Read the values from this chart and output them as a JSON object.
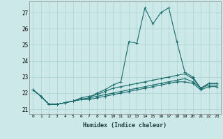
{
  "xlabel": "Humidex (Indice chaleur)",
  "xlim": [
    -0.5,
    23.5
  ],
  "ylim": [
    20.7,
    27.7
  ],
  "yticks": [
    21,
    22,
    23,
    24,
    25,
    26,
    27
  ],
  "xticks": [
    0,
    1,
    2,
    3,
    4,
    5,
    6,
    7,
    8,
    9,
    10,
    11,
    12,
    13,
    14,
    15,
    16,
    17,
    18,
    19,
    20,
    21,
    22,
    23
  ],
  "bg_color": "#cce8e8",
  "grid_color": "#aad0d0",
  "line_color": "#1a6b6b",
  "lines": [
    [
      22.2,
      21.8,
      21.3,
      21.3,
      21.4,
      21.5,
      21.6,
      21.7,
      22.0,
      22.2,
      22.5,
      22.7,
      25.2,
      25.1,
      27.3,
      26.3,
      27.0,
      27.3,
      25.2,
      23.3,
      23.0,
      22.3,
      22.6,
      22.6
    ],
    [
      22.2,
      21.8,
      21.3,
      21.3,
      21.4,
      21.5,
      21.7,
      21.8,
      21.9,
      22.1,
      22.3,
      22.4,
      22.5,
      22.6,
      22.7,
      22.8,
      22.9,
      23.0,
      23.1,
      23.2,
      22.9,
      22.3,
      22.6,
      22.6
    ],
    [
      22.2,
      21.8,
      21.3,
      21.3,
      21.4,
      21.5,
      21.6,
      21.7,
      21.8,
      21.9,
      22.0,
      22.1,
      22.2,
      22.3,
      22.4,
      22.5,
      22.6,
      22.7,
      22.8,
      22.9,
      22.7,
      22.3,
      22.5,
      22.5
    ],
    [
      22.2,
      21.8,
      21.3,
      21.3,
      21.4,
      21.5,
      21.6,
      21.6,
      21.7,
      21.8,
      21.9,
      22.0,
      22.1,
      22.2,
      22.3,
      22.4,
      22.5,
      22.6,
      22.7,
      22.7,
      22.6,
      22.2,
      22.4,
      22.4
    ]
  ]
}
